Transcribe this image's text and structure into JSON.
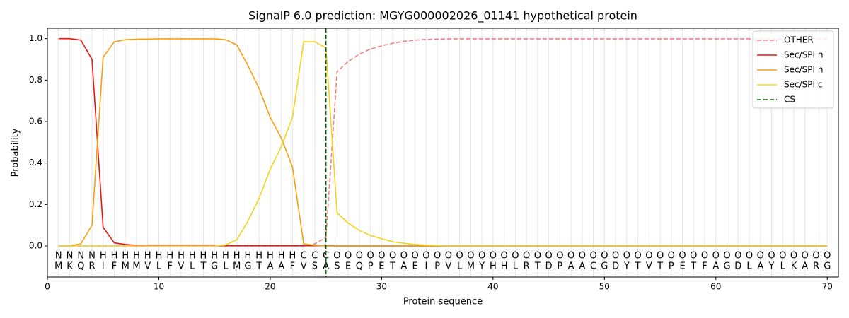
{
  "chart_data": {
    "type": "line",
    "title": "SignalP 6.0 prediction: MGYG000002026_01141 hypothetical protein",
    "xlabel": "Protein sequence",
    "ylabel": "Probability",
    "x": [
      1,
      2,
      3,
      4,
      5,
      6,
      7,
      8,
      9,
      10,
      11,
      12,
      13,
      14,
      15,
      16,
      17,
      18,
      19,
      20,
      21,
      22,
      23,
      24,
      25,
      26,
      27,
      28,
      29,
      30,
      31,
      32,
      33,
      34,
      35,
      36,
      37,
      38,
      39,
      40,
      41,
      42,
      43,
      44,
      45,
      46,
      47,
      48,
      49,
      50,
      51,
      52,
      53,
      54,
      55,
      56,
      57,
      58,
      59,
      60,
      61,
      62,
      63,
      64,
      65,
      66,
      67,
      68,
      69,
      70
    ],
    "sequence": [
      "M",
      "K",
      "Q",
      "R",
      "I",
      "F",
      "M",
      "M",
      "V",
      "L",
      "F",
      "V",
      "L",
      "T",
      "G",
      "L",
      "M",
      "G",
      "T",
      "A",
      "A",
      "F",
      "V",
      "S",
      "A",
      "S",
      "E",
      "Q",
      "P",
      "E",
      "T",
      "A",
      "E",
      "I",
      "P",
      "V",
      "L",
      "M",
      "Y",
      "H",
      "H",
      "L",
      "R",
      "T",
      "D",
      "P",
      "A",
      "A",
      "C",
      "G",
      "D",
      "Y",
      "T",
      "V",
      "T",
      "P",
      "E",
      "T",
      "F",
      "A",
      "G",
      "D",
      "L",
      "A",
      "Y",
      "L",
      "K",
      "A",
      "R",
      "G"
    ],
    "labels": [
      "N",
      "N",
      "N",
      "N",
      "H",
      "H",
      "H",
      "H",
      "H",
      "H",
      "H",
      "H",
      "H",
      "H",
      "H",
      "H",
      "H",
      "H",
      "H",
      "H",
      "H",
      "H",
      "C",
      "C",
      "C",
      "O",
      "O",
      "O",
      "O",
      "O",
      "O",
      "O",
      "O",
      "O",
      "O",
      "O",
      "O",
      "O",
      "O",
      "O",
      "O",
      "O",
      "O",
      "O",
      "O",
      "O",
      "O",
      "O",
      "O",
      "O",
      "O",
      "O",
      "O",
      "O",
      "O",
      "O",
      "O",
      "O",
      "O",
      "O",
      "O",
      "O",
      "O",
      "O",
      "O",
      "O",
      "O",
      "O",
      "O",
      "O"
    ],
    "label_colors": {
      "N": "#e8160c",
      "H": "#f5a00f",
      "C": "#f5c80f",
      "O": "#808080"
    },
    "series": [
      {
        "name": "OTHER",
        "color": "#f08080",
        "dash": true,
        "values": [
          0,
          0,
          0,
          0,
          0,
          0,
          0,
          0,
          0,
          0,
          0,
          0,
          0,
          0,
          0,
          0,
          0,
          0,
          0,
          0,
          0,
          0,
          0,
          0.01,
          0.04,
          0.84,
          0.89,
          0.925,
          0.95,
          0.965,
          0.978,
          0.987,
          0.993,
          0.996,
          0.998,
          0.999,
          0.999,
          0.999,
          0.999,
          0.999,
          0.999,
          0.999,
          0.999,
          0.999,
          0.999,
          0.999,
          0.999,
          0.999,
          0.999,
          0.999,
          0.999,
          0.999,
          0.999,
          0.999,
          0.999,
          0.999,
          0.999,
          0.999,
          0.999,
          0.999,
          0.999,
          0.999,
          0.999,
          0.999,
          0.999,
          0.999,
          0.999,
          0.999,
          0.999,
          0.999
        ]
      },
      {
        "name": "Sec/SPI n",
        "color": "#e8160c",
        "dash": false,
        "values": [
          1.0,
          1.0,
          0.993,
          0.9,
          0.09,
          0.015,
          0.007,
          0.003,
          0.002,
          0.002,
          0.002,
          0.002,
          0.002,
          0.002,
          0.002,
          0.001,
          0.001,
          0.001,
          0.001,
          0.001,
          0.001,
          0.001,
          0.001,
          0.001,
          0.001,
          0,
          0,
          0,
          0,
          0,
          0,
          0,
          0,
          0,
          0,
          0,
          0,
          0,
          0,
          0,
          0,
          0,
          0,
          0,
          0,
          0,
          0,
          0,
          0,
          0,
          0,
          0,
          0,
          0,
          0,
          0,
          0,
          0,
          0,
          0,
          0,
          0,
          0,
          0,
          0,
          0,
          0,
          0,
          0,
          0
        ]
      },
      {
        "name": "Sec/SPI h",
        "color": "#f5a00f",
        "dash": false,
        "values": [
          0,
          0,
          0.01,
          0.1,
          0.91,
          0.985,
          0.995,
          0.997,
          0.998,
          0.999,
          0.999,
          0.999,
          0.999,
          0.999,
          0.999,
          0.995,
          0.97,
          0.87,
          0.76,
          0.62,
          0.52,
          0.38,
          0.01,
          0.003,
          0,
          0,
          0,
          0,
          0,
          0,
          0,
          0,
          0,
          0,
          0,
          0,
          0,
          0,
          0,
          0,
          0,
          0,
          0,
          0,
          0,
          0,
          0,
          0,
          0,
          0,
          0,
          0,
          0,
          0,
          0,
          0,
          0,
          0,
          0,
          0,
          0,
          0,
          0,
          0,
          0,
          0,
          0,
          0,
          0,
          0
        ]
      },
      {
        "name": "Sec/SPI c",
        "color": "#f5d21e",
        "dash": false,
        "values": [
          0,
          0,
          0,
          0,
          0,
          0,
          0,
          0,
          0,
          0,
          0,
          0,
          0,
          0,
          0,
          0.005,
          0.03,
          0.12,
          0.23,
          0.37,
          0.48,
          0.62,
          0.985,
          0.985,
          0.955,
          0.16,
          0.11,
          0.075,
          0.05,
          0.035,
          0.02,
          0.013,
          0.007,
          0.004,
          0.002,
          0,
          0,
          0,
          0,
          0,
          0,
          0,
          0,
          0,
          0,
          0,
          0,
          0,
          0,
          0,
          0,
          0,
          0,
          0,
          0,
          0,
          0,
          0,
          0,
          0,
          0,
          0,
          0,
          0,
          0,
          0,
          0,
          0,
          0,
          0
        ]
      }
    ],
    "cs": {
      "name": "CS",
      "x": 25,
      "color": "#006400"
    },
    "xlim": [
      0,
      71
    ],
    "ylim": [
      -0.15,
      1.05
    ],
    "xticks": [
      0,
      10,
      20,
      30,
      40,
      50,
      60,
      70
    ],
    "yticks": [
      {
        "value": 0,
        "label": "0.0"
      },
      {
        "value": 0.2,
        "label": "0.2"
      },
      {
        "value": 0.4,
        "label": "0.4"
      },
      {
        "value": 0.6,
        "label": "0.6"
      },
      {
        "value": 0.8,
        "label": "0.8"
      },
      {
        "value": 1,
        "label": "1.0"
      }
    ],
    "grid": true,
    "legend": "upper right"
  }
}
